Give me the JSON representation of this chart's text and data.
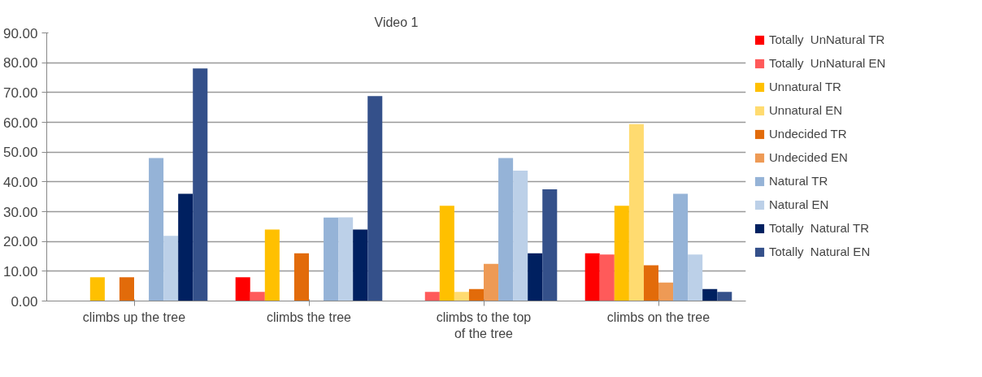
{
  "chart_data": {
    "type": "bar",
    "title": "Video 1",
    "categories": [
      "climbs up the tree",
      "climbs the tree",
      "climbs to the top of the tree",
      "climbs on the tree"
    ],
    "series": [
      {
        "name": "Totally  UnNatural TR",
        "color": "#ff0000",
        "values": [
          0,
          8,
          0,
          16
        ]
      },
      {
        "name": "Totally  UnNatural EN",
        "color": "#ff5a5a",
        "values": [
          0,
          3.1,
          3.1,
          15.6
        ]
      },
      {
        "name": "Unnatural TR",
        "color": "#ffc000",
        "values": [
          8,
          24,
          32,
          32
        ]
      },
      {
        "name": "Unnatural EN",
        "color": "#ffdb70",
        "values": [
          0,
          0,
          3.1,
          59.4
        ]
      },
      {
        "name": "Undecided TR",
        "color": "#e26b0a",
        "values": [
          8,
          16,
          4,
          12
        ]
      },
      {
        "name": "Undecided EN",
        "color": "#ee9a55",
        "values": [
          0,
          0,
          12.5,
          6.2
        ]
      },
      {
        "name": "Natural TR",
        "color": "#95b3d7",
        "values": [
          48,
          28,
          48,
          36
        ]
      },
      {
        "name": "Natural EN",
        "color": "#bcd0e8",
        "values": [
          21.9,
          28.1,
          43.8,
          15.6
        ]
      },
      {
        "name": "Totally  Natural TR",
        "color": "#002060",
        "values": [
          36,
          24,
          16,
          4
        ]
      },
      {
        "name": "Totally  Natural EN",
        "color": "#34508a",
        "values": [
          78.1,
          68.8,
          37.5,
          3.1
        ]
      }
    ],
    "ylim": [
      0,
      90
    ],
    "yticks": [
      {
        "value": 0,
        "label": "0.00"
      },
      {
        "value": 10,
        "label": "10.00"
      },
      {
        "value": 20,
        "label": "20.00"
      },
      {
        "value": 30,
        "label": "30.00"
      },
      {
        "value": 40,
        "label": "40.00"
      },
      {
        "value": 50,
        "label": "50.00"
      },
      {
        "value": 60,
        "label": "60.00"
      },
      {
        "value": 70,
        "label": "70.00"
      },
      {
        "value": 80,
        "label": "80.00"
      },
      {
        "value": 90,
        "label": "90.00"
      }
    ],
    "grid": "y",
    "legend": "right"
  }
}
